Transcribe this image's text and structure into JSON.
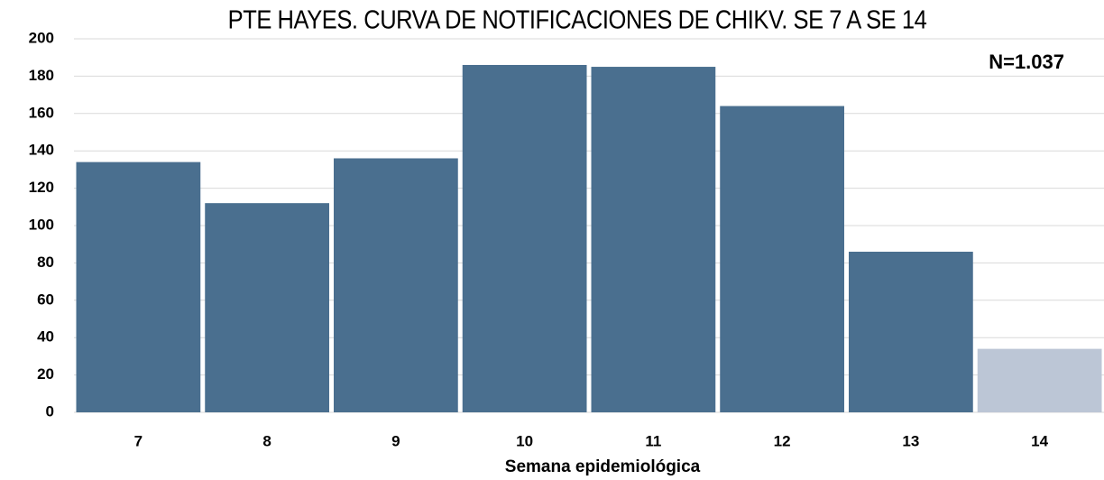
{
  "chart_data": {
    "type": "bar",
    "title": "PTE HAYES. CURVA DE NOTIFICACIONES DE CHIKV. SE 7 A SE 14",
    "annotation": "N=1.037",
    "x_label": "Semana epidemiológica",
    "categories": [
      "7",
      "8",
      "9",
      "10",
      "11",
      "12",
      "13",
      "14"
    ],
    "values": [
      134,
      112,
      136,
      186,
      185,
      164,
      86,
      34
    ],
    "colors": [
      "#4a6f8f",
      "#4a6f8f",
      "#4a6f8f",
      "#4a6f8f",
      "#4a6f8f",
      "#4a6f8f",
      "#4a6f8f",
      "#bcc6d6"
    ],
    "ylim": [
      0,
      200
    ],
    "yticks": [
      0,
      20,
      40,
      60,
      80,
      100,
      120,
      140,
      160,
      180,
      200
    ],
    "grid": true
  }
}
